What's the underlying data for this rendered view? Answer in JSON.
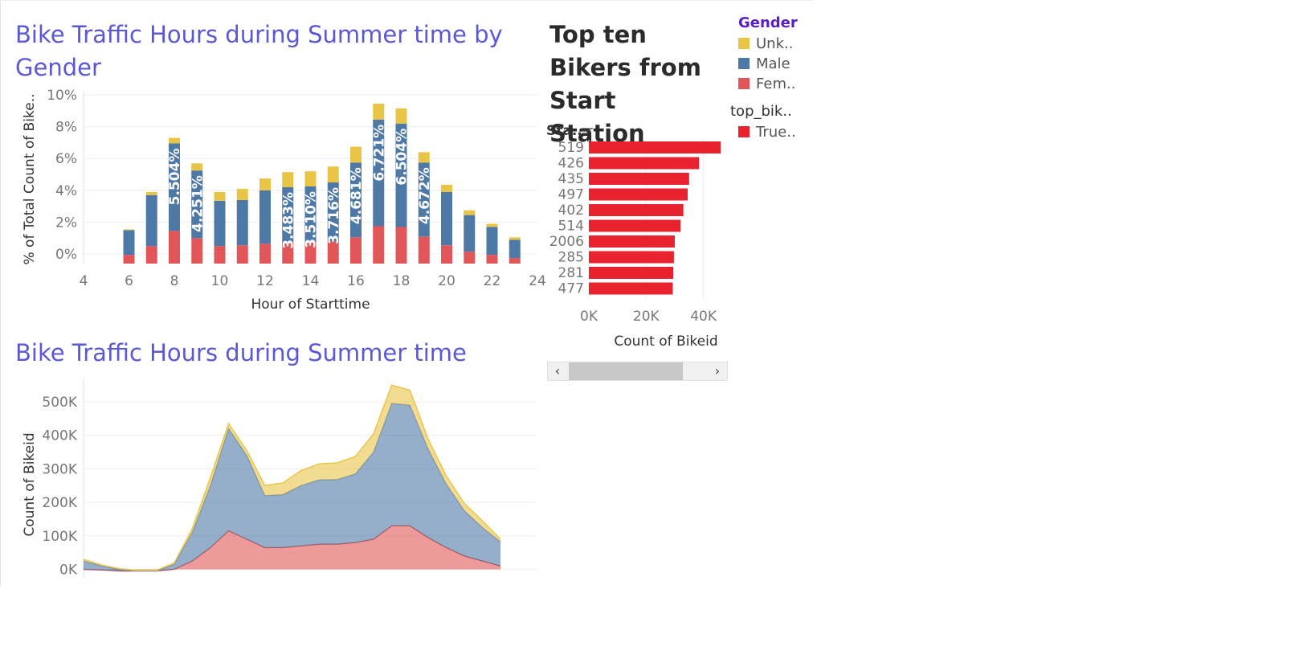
{
  "titles": {
    "bar_chart": "Bike Traffic Hours during Summer time by Gender",
    "area_chart": "Bike Traffic Hours during Summer time",
    "top_chart": "Top ten Bikers from Start Station"
  },
  "legend": {
    "gender_title": "Gender",
    "gender_items": [
      {
        "label": "Unk..",
        "color": "#e8c547"
      },
      {
        "label": "Male",
        "color": "#4e79a7"
      },
      {
        "label": "Fem..",
        "color": "#e15759"
      }
    ],
    "top_title": "top_bik..",
    "top_items": [
      {
        "label": "True..",
        "color": "#e8222e"
      }
    ]
  },
  "chart_data": [
    {
      "type": "bar",
      "stacked": true,
      "title": "Bike Traffic Hours during Summer time by Gender",
      "xlabel": "Hour of Starttime",
      "ylabel": "% of Total Count of Bike..",
      "x_ticks": [
        "4",
        "6",
        "8",
        "10",
        "12",
        "14",
        "16",
        "18",
        "20",
        "22",
        "24"
      ],
      "y_ticks": [
        "0%",
        "2%",
        "4%",
        "6%",
        "8%",
        "10%"
      ],
      "xlim": [
        4,
        24
      ],
      "ylim": [
        0,
        10
      ],
      "categories": [
        6,
        7,
        8,
        9,
        10,
        11,
        12,
        13,
        14,
        15,
        16,
        17,
        18,
        19,
        20,
        21,
        22,
        23
      ],
      "series": [
        {
          "name": "Fem..",
          "color": "#e15759",
          "values": [
            0.55,
            1.1,
            2.05,
            1.6,
            1.1,
            1.15,
            1.25,
            1.35,
            1.35,
            1.4,
            1.65,
            2.35,
            2.3,
            1.7,
            1.15,
            0.75,
            0.55,
            0.35
          ]
        },
        {
          "name": "Male",
          "color": "#4e79a7",
          "values": [
            1.55,
            3.2,
            5.5,
            4.25,
            2.85,
            2.85,
            3.35,
            3.45,
            3.5,
            3.7,
            4.7,
            6.7,
            6.5,
            4.65,
            3.35,
            2.3,
            1.75,
            1.15
          ]
        },
        {
          "name": "Unk..",
          "color": "#e8c547",
          "values": [
            0.05,
            0.2,
            0.35,
            0.45,
            0.55,
            0.7,
            0.75,
            0.95,
            0.95,
            1.0,
            1.0,
            1.0,
            0.95,
            0.65,
            0.45,
            0.3,
            0.2,
            0.15
          ]
        }
      ],
      "data_labels": [
        {
          "x": 8,
          "text": "5.504%"
        },
        {
          "x": 9,
          "text": "4.251%"
        },
        {
          "x": 13,
          "text": "3.483%"
        },
        {
          "x": 14,
          "text": "3.510%"
        },
        {
          "x": 15,
          "text": "3.716%"
        },
        {
          "x": 16,
          "text": "4.681%"
        },
        {
          "x": 17,
          "text": "6.721%"
        },
        {
          "x": 18,
          "text": "6.504%"
        },
        {
          "x": 19,
          "text": "4.672%"
        }
      ]
    },
    {
      "type": "bar",
      "orientation": "horizontal",
      "title": "Top ten Bikers from Start Station",
      "ylabel": "Sta..",
      "xlabel": "Count of Bikeid",
      "x_ticks": [
        "0K",
        "20K",
        "40K"
      ],
      "xlim": [
        0,
        46000
      ],
      "categories": [
        "519",
        "426",
        "435",
        "497",
        "402",
        "514",
        "2006",
        "285",
        "281",
        "477"
      ],
      "values": [
        46000,
        38500,
        35000,
        34500,
        33000,
        32000,
        30000,
        29700,
        29500,
        29300
      ],
      "color": "#e8222e"
    },
    {
      "type": "area",
      "stacked": true,
      "title": "Bike Traffic Hours during Summer time",
      "ylabel": "Count of Bikeid",
      "y_ticks": [
        "0K",
        "100K",
        "200K",
        "300K",
        "400K",
        "500K"
      ],
      "ylim": [
        -30000,
        560000
      ],
      "x": [
        0,
        1,
        2,
        3,
        4,
        5,
        6,
        7,
        8,
        9,
        10,
        11,
        12,
        13,
        14,
        15,
        16,
        17,
        18,
        19,
        20,
        21,
        22,
        23
      ],
      "series": [
        {
          "name": "Fem..",
          "color": "#e15759",
          "values": [
            0,
            -2000,
            -5000,
            -5000,
            -5000,
            0,
            25000,
            65000,
            115000,
            90000,
            65000,
            65000,
            70000,
            75000,
            75000,
            80000,
            90000,
            130000,
            130000,
            95000,
            65000,
            40000,
            25000,
            10000
          ]
        },
        {
          "name": "Male",
          "color": "#4e79a7",
          "values": [
            25000,
            12000,
            5000,
            0,
            0,
            15000,
            85000,
            185000,
            305000,
            250000,
            155000,
            158000,
            180000,
            192000,
            193000,
            205000,
            260000,
            365000,
            360000,
            265000,
            190000,
            135000,
            100000,
            72000
          ]
        },
        {
          "name": "Unk..",
          "color": "#e8c547",
          "values": [
            5000,
            3000,
            2000,
            2000,
            2000,
            4000,
            12000,
            25000,
            15000,
            15000,
            30000,
            35000,
            45000,
            48000,
            50000,
            52000,
            55000,
            55000,
            45000,
            30000,
            25000,
            22000,
            20000,
            8000
          ]
        }
      ]
    }
  ],
  "scroll": {
    "left": "‹",
    "right": "›"
  }
}
